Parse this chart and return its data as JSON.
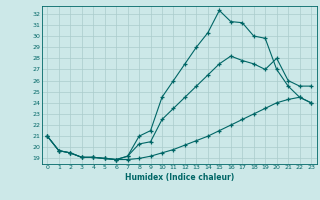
{
  "xlabel": "Humidex (Indice chaleur)",
  "bg_color": "#cce8e8",
  "grid_color": "#aacccc",
  "line_color": "#006666",
  "xlim": [
    -0.5,
    23.5
  ],
  "ylim": [
    18.5,
    32.7
  ],
  "xticks": [
    0,
    1,
    2,
    3,
    4,
    5,
    6,
    7,
    8,
    9,
    10,
    11,
    12,
    13,
    14,
    15,
    16,
    17,
    18,
    19,
    20,
    21,
    22,
    23
  ],
  "yticks": [
    19,
    20,
    21,
    22,
    23,
    24,
    25,
    26,
    27,
    28,
    29,
    30,
    31,
    32
  ],
  "line1_x": [
    0,
    1,
    2,
    3,
    4,
    5,
    6,
    7,
    8,
    9,
    10,
    11,
    12,
    13,
    14,
    15,
    16,
    17,
    18,
    19,
    20,
    21,
    22,
    23
  ],
  "line1_y": [
    21.0,
    19.7,
    19.5,
    19.1,
    19.1,
    19.0,
    18.9,
    18.9,
    19.0,
    19.2,
    19.5,
    19.8,
    20.2,
    20.6,
    21.0,
    21.5,
    22.0,
    22.5,
    23.0,
    23.5,
    24.0,
    24.3,
    24.5,
    24.0
  ],
  "line2_x": [
    0,
    1,
    2,
    3,
    4,
    5,
    6,
    7,
    8,
    9,
    10,
    11,
    12,
    13,
    14,
    15,
    16,
    17,
    18,
    19,
    20,
    21,
    22,
    23
  ],
  "line2_y": [
    21.0,
    19.7,
    19.5,
    19.1,
    19.1,
    19.0,
    18.9,
    19.2,
    20.3,
    20.5,
    22.5,
    23.5,
    24.5,
    25.5,
    26.5,
    27.5,
    28.2,
    27.8,
    27.5,
    27.0,
    28.0,
    26.0,
    25.5,
    25.5
  ],
  "line3_x": [
    0,
    1,
    2,
    3,
    4,
    5,
    6,
    7,
    8,
    9,
    10,
    11,
    12,
    13,
    14,
    15,
    16,
    17,
    18,
    19,
    20,
    21,
    22,
    23
  ],
  "line3_y": [
    21.0,
    19.7,
    19.5,
    19.1,
    19.1,
    19.0,
    18.9,
    19.2,
    21.0,
    21.5,
    24.5,
    26.0,
    27.5,
    29.0,
    30.3,
    32.3,
    31.3,
    31.2,
    30.0,
    29.8,
    27.0,
    25.5,
    24.5,
    24.0
  ]
}
